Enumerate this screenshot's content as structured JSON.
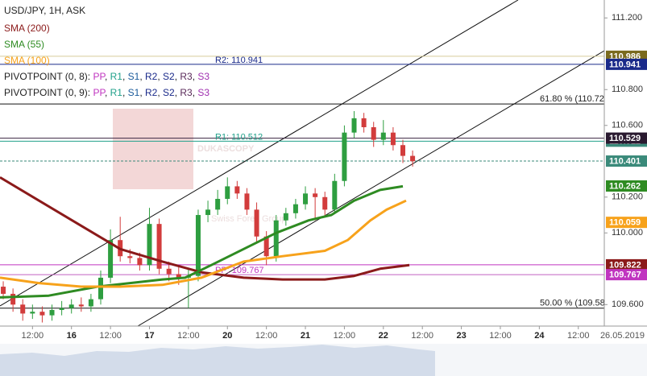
{
  "chart_data": {
    "type": "candlestick",
    "title": "USD/JPY, 1H, ASK",
    "x": [
      3,
      6,
      9,
      12,
      15,
      18,
      21,
      24,
      27,
      30,
      33,
      36,
      39,
      42,
      45,
      48,
      51,
      54,
      57,
      60,
      63,
      66,
      69,
      72,
      75,
      78,
      81,
      84,
      87,
      90,
      93,
      96,
      99,
      102,
      105,
      108,
      111,
      114,
      117,
      120,
      123,
      126,
      129
    ],
    "open": [
      109.7,
      109.66,
      109.6,
      109.55,
      109.56,
      109.54,
      109.57,
      109.58,
      109.6,
      109.59,
      109.63,
      109.75,
      109.96,
      109.87,
      109.86,
      109.82,
      110.05,
      109.8,
      109.77,
      109.75,
      109.76,
      110.1,
      110.13,
      110.19,
      110.26,
      110.22,
      110.13,
      109.98,
      109.87,
      110.07,
      110.11,
      110.16,
      110.22,
      110.2,
      110.13,
      110.29,
      110.56,
      110.64,
      110.59,
      110.52,
      110.56,
      110.49,
      110.43
    ],
    "high": [
      109.73,
      109.69,
      109.63,
      109.6,
      109.59,
      109.6,
      109.62,
      109.63,
      109.64,
      109.66,
      109.79,
      110.02,
      110.09,
      109.91,
      109.89,
      110.14,
      110.08,
      109.84,
      109.81,
      109.8,
      110.13,
      110.18,
      110.24,
      110.31,
      110.29,
      110.25,
      110.17,
      110.01,
      110.1,
      110.14,
      110.19,
      110.26,
      110.25,
      110.23,
      110.33,
      110.6,
      110.68,
      110.67,
      110.62,
      110.63,
      110.59,
      110.52,
      110.46
    ],
    "low": [
      109.63,
      109.56,
      109.51,
      109.52,
      109.5,
      109.51,
      109.54,
      109.55,
      109.56,
      109.56,
      109.6,
      109.72,
      109.84,
      109.83,
      109.79,
      109.79,
      109.77,
      109.73,
      109.71,
      109.58,
      109.73,
      110.06,
      110.1,
      110.16,
      110.19,
      110.1,
      109.95,
      109.82,
      109.84,
      110.04,
      110.08,
      110.13,
      110.07,
      110.09,
      110.11,
      110.26,
      110.53,
      110.56,
      110.48,
      110.49,
      110.46,
      110.39,
      110.37
    ],
    "close": [
      109.66,
      109.6,
      109.55,
      109.56,
      109.54,
      109.57,
      109.58,
      109.6,
      109.59,
      109.63,
      109.75,
      109.96,
      109.87,
      109.86,
      109.82,
      110.05,
      109.8,
      109.77,
      109.75,
      109.76,
      110.1,
      110.13,
      110.19,
      110.26,
      110.22,
      110.13,
      109.98,
      109.87,
      110.07,
      110.11,
      110.16,
      110.22,
      110.2,
      110.13,
      110.29,
      110.56,
      110.64,
      110.59,
      110.52,
      110.56,
      110.49,
      110.43,
      110.4
    ],
    "up_color": "#2e9e40",
    "down_color": "#d23c3c",
    "series": [
      {
        "name": "SMA (200)",
        "color": "#8b1a1a",
        "x": [
          2,
          14,
          27,
          39,
          52,
          64,
          77,
          89,
          102,
          111,
          119,
          128
        ],
        "values": [
          110.31,
          110.18,
          110.04,
          109.91,
          109.84,
          109.78,
          109.75,
          109.74,
          109.74,
          109.76,
          109.8,
          109.82
        ]
      },
      {
        "name": "SMA (55)",
        "color": "#2e8b22",
        "x": [
          2,
          17,
          32,
          42,
          52,
          59,
          67,
          77,
          87,
          97,
          104,
          111,
          119,
          126
        ],
        "values": [
          109.64,
          109.65,
          109.7,
          109.72,
          109.74,
          109.75,
          109.82,
          109.91,
          110.0,
          110.07,
          110.1,
          110.18,
          110.24,
          110.26
        ]
      },
      {
        "name": "SMA (100)",
        "color": "#f7a21b",
        "x": [
          2,
          14,
          27,
          39,
          52,
          64,
          77,
          89,
          102,
          109,
          116,
          121,
          127
        ],
        "values": [
          109.75,
          109.72,
          109.7,
          109.7,
          109.71,
          109.75,
          109.84,
          109.87,
          109.9,
          109.96,
          110.07,
          110.13,
          110.18
        ]
      }
    ],
    "pivot_legends": [
      {
        "parts": [
          {
            "text": "PIVOTPOINT (0, 8): "
          },
          {
            "text": "PP",
            "color": "#c035c0"
          },
          {
            "text": ", "
          },
          {
            "text": "R1",
            "color": "#20a08a"
          },
          {
            "text": ", "
          },
          {
            "text": "S1",
            "color": "#1a5a9a"
          },
          {
            "text": ", "
          },
          {
            "text": "R2",
            "color": "#1a2a8a"
          },
          {
            "text": ", "
          },
          {
            "text": "S2",
            "color": "#1a2a8a"
          },
          {
            "text": ", "
          },
          {
            "text": "R3",
            "color": "#5a2a5a"
          },
          {
            "text": ", "
          },
          {
            "text": "S3",
            "color": "#a030b0"
          }
        ]
      },
      {
        "parts": [
          {
            "text": "PIVOTPOINT (0, 9): "
          },
          {
            "text": "PP",
            "color": "#c035c0"
          },
          {
            "text": ", "
          },
          {
            "text": "R1",
            "color": "#20a08a"
          },
          {
            "text": ", "
          },
          {
            "text": "S1",
            "color": "#1a5a9a"
          },
          {
            "text": ", "
          },
          {
            "text": "R2",
            "color": "#1a2a8a"
          },
          {
            "text": ", "
          },
          {
            "text": "S2",
            "color": "#1a2a8a"
          },
          {
            "text": ", "
          },
          {
            "text": "R3",
            "color": "#5a2a5a"
          },
          {
            "text": ", "
          },
          {
            "text": "S3",
            "color": "#a030b0"
          }
        ]
      }
    ],
    "price_levels": [
      {
        "value": 110.986,
        "color": "#d6cc9a",
        "box_color": "#7a6a1e",
        "line_style": "solid"
      },
      {
        "value": 110.941,
        "color": "#1a2a8a",
        "box_color": "#1a2a8a",
        "line_style": "solid"
      },
      {
        "value": 110.512,
        "color": "#20a08a",
        "box_color": "#3a8a7a",
        "line_style": "solid"
      },
      {
        "value": 110.529,
        "color": "#3a2440",
        "box_color": "#2a1a30",
        "line_style": "solid"
      },
      {
        "value": 110.401,
        "color": "#3a8a7a",
        "box_color": "#3a8a7a",
        "line_style": "dashed"
      },
      {
        "value": 110.262,
        "color": "#2e8b22",
        "box_color": "#2e8b22",
        "line_style": "none"
      },
      {
        "value": 110.059,
        "color": "#f7a21b",
        "box_color": "#f7a21b",
        "line_style": "none"
      },
      {
        "value": 109.822,
        "color": "#c035c0",
        "box_color": "#8b1a1a",
        "line_style": "solid"
      },
      {
        "value": 109.767,
        "color": "#c060c0",
        "box_color": "#c035c0",
        "line_style": "solid"
      }
    ],
    "pivot_labels": [
      {
        "text": "R2: 110.941",
        "value": 110.941,
        "color": "#1a2a8a"
      },
      {
        "text": "R1: 110.512",
        "value": 110.512,
        "color": "#20a08a"
      },
      {
        "text": "PP: 109.767",
        "value": 109.767,
        "color": "#c035c0"
      }
    ],
    "fib_levels": [
      {
        "text": "61.80 % (110.72)",
        "value": 110.72
      },
      {
        "text": "50.00 % (109.58)",
        "value": 109.58
      }
    ],
    "watermark": [
      "DUKASCOPY",
      "Swiss Forex Group"
    ],
    "xlim": [
      2,
      188
    ],
    "ylim": [
      109.48,
      111.3
    ],
    "xticks": [
      {
        "value": 12,
        "label": "12:00"
      },
      {
        "value": 24,
        "label": "16"
      },
      {
        "value": 36,
        "label": "12:00"
      },
      {
        "value": 48,
        "label": "17"
      },
      {
        "value": 60,
        "label": "12:00"
      },
      {
        "value": 72,
        "label": "20"
      },
      {
        "value": 84,
        "label": "12:00"
      },
      {
        "value": 96,
        "label": "21"
      },
      {
        "value": 108,
        "label": "12:00"
      },
      {
        "value": 120,
        "label": "22"
      },
      {
        "value": 132,
        "label": "12:00"
      },
      {
        "value": 144,
        "label": "23"
      },
      {
        "value": 156,
        "label": "12:00"
      },
      {
        "value": 168,
        "label": "24"
      },
      {
        "value": 180,
        "label": "12:00"
      }
    ],
    "yticks": [
      {
        "value": 109.6,
        "label": "109.600"
      },
      {
        "value": 110.0,
        "label": "110.000"
      },
      {
        "value": 110.2,
        "label": "110.200"
      },
      {
        "value": 110.6,
        "label": "110.600"
      },
      {
        "value": 110.8,
        "label": "110.800"
      },
      {
        "value": 111.2,
        "label": "111.200"
      }
    ],
    "date_label": "26.05.2019"
  }
}
